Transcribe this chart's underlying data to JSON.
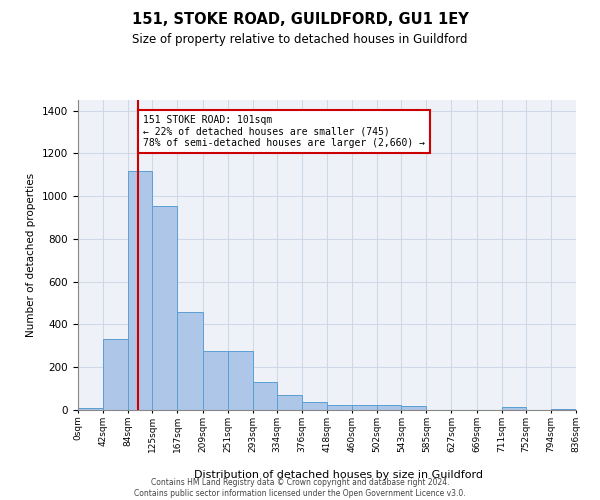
{
  "title": "151, STOKE ROAD, GUILDFORD, GU1 1EY",
  "subtitle": "Size of property relative to detached houses in Guildford",
  "xlabel": "Distribution of detached houses by size in Guildford",
  "ylabel": "Number of detached properties",
  "bar_color": "#aec6e8",
  "bar_edge_color": "#5a9fd4",
  "grid_color": "#d0d8e8",
  "background_color": "#eef2f8",
  "property_line_x": 101,
  "property_line_color": "#cc0000",
  "annotation_text": "151 STOKE ROAD: 101sqm\n← 22% of detached houses are smaller (745)\n78% of semi-detached houses are larger (2,660) →",
  "annotation_box_color": "#cc0000",
  "annotation_text_color": "#000000",
  "footnote": "Contains HM Land Registry data © Crown copyright and database right 2024.\nContains public sector information licensed under the Open Government Licence v3.0.",
  "bin_edges": [
    0,
    42,
    84,
    125,
    167,
    209,
    251,
    293,
    334,
    376,
    418,
    460,
    502,
    543,
    585,
    627,
    669,
    711,
    752,
    794,
    836
  ],
  "bin_labels": [
    "0sqm",
    "42sqm",
    "84sqm",
    "125sqm",
    "167sqm",
    "209sqm",
    "251sqm",
    "293sqm",
    "334sqm",
    "376sqm",
    "418sqm",
    "460sqm",
    "502sqm",
    "543sqm",
    "585sqm",
    "627sqm",
    "669sqm",
    "711sqm",
    "752sqm",
    "794sqm",
    "836sqm"
  ],
  "bar_heights": [
    10,
    330,
    1120,
    955,
    460,
    275,
    275,
    130,
    70,
    38,
    22,
    25,
    22,
    20,
    2,
    0,
    0,
    12,
    0,
    5
  ],
  "ylim": [
    0,
    1450
  ],
  "yticks": [
    0,
    200,
    400,
    600,
    800,
    1000,
    1200,
    1400
  ]
}
